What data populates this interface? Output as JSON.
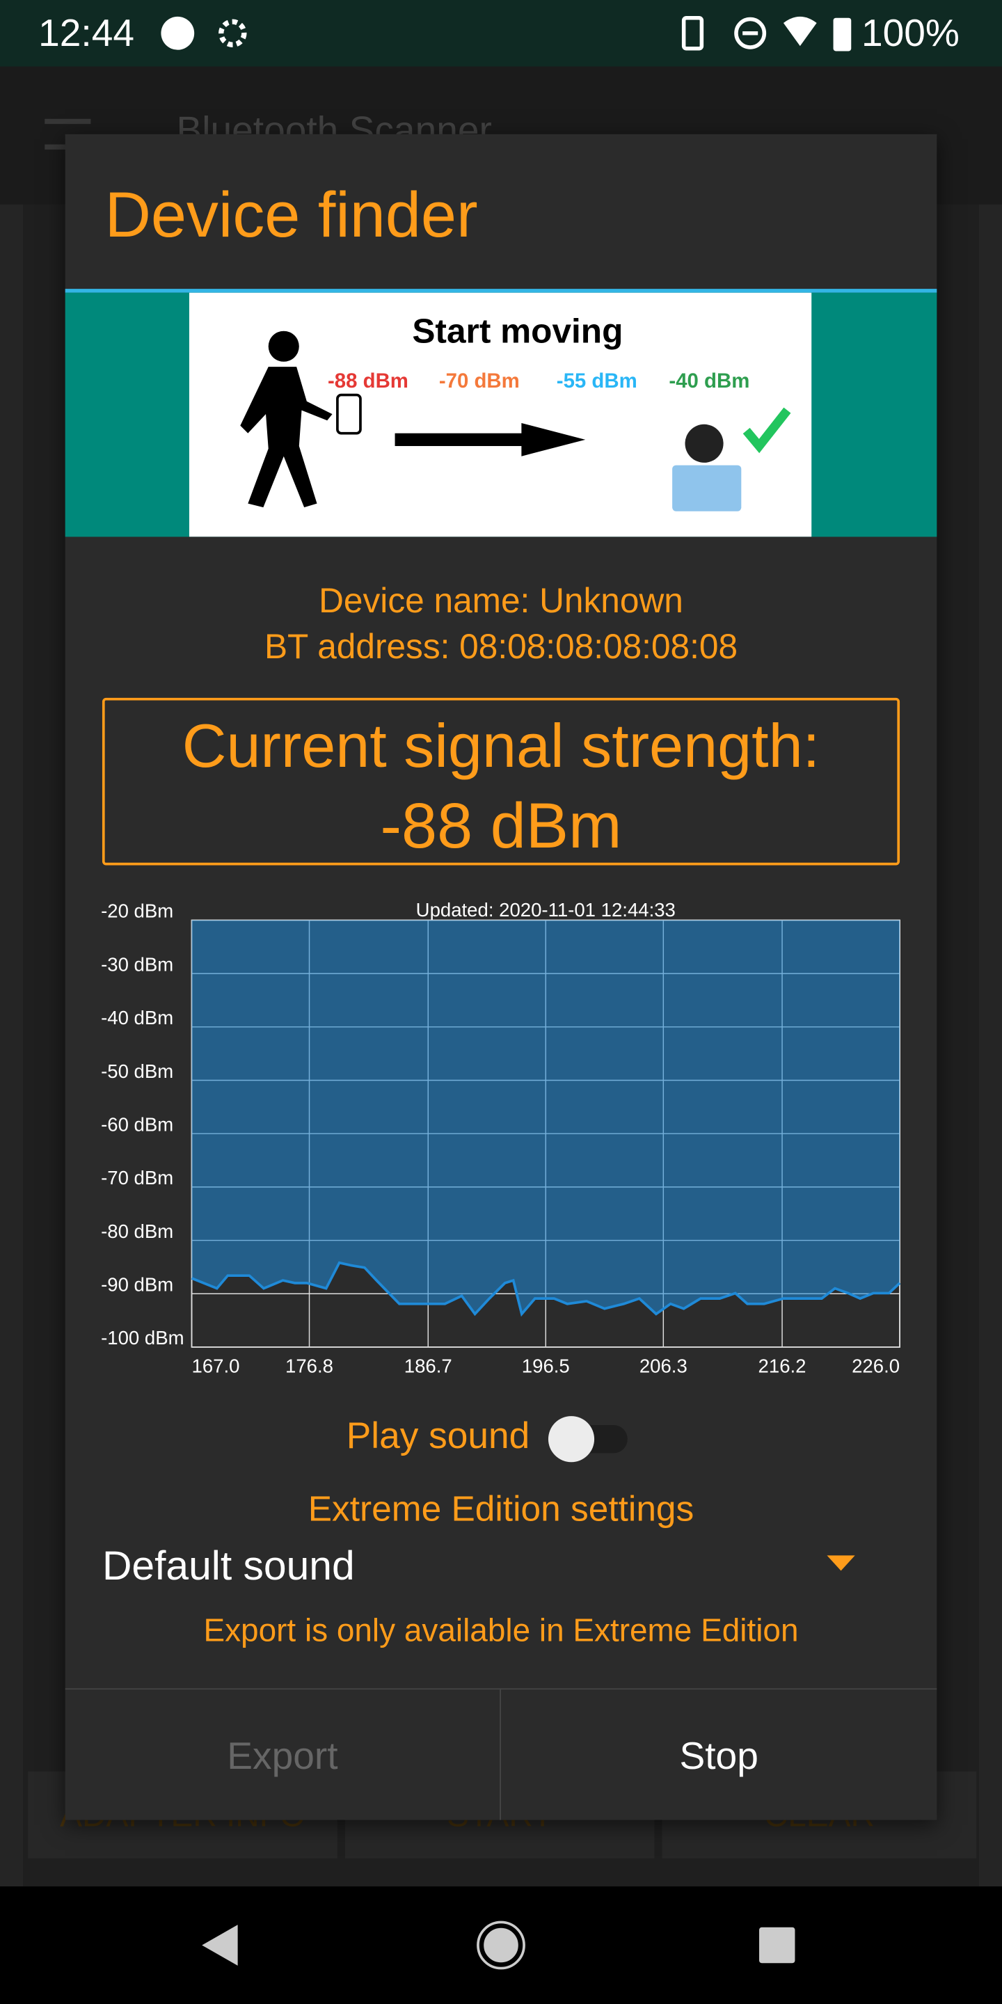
{
  "status_bar": {
    "time": "12:44",
    "battery": "100%"
  },
  "background_app": {
    "title": "Bluetooth Scanner",
    "buttons": [
      "ADAPTER INFO",
      "START",
      "CLEAR"
    ]
  },
  "dialog": {
    "title": "Device finder",
    "illustration": {
      "title": "Start moving",
      "levels": [
        "-88 dBm",
        "-70 dBm",
        "-55 dBm",
        "-40 dBm"
      ]
    },
    "device_name": "Device name: Unknown",
    "bt_address": "BT address: 08:08:08:08:08:08",
    "signal_label": "Current signal strength:",
    "signal_value": "-88 dBm",
    "play_sound": "Play sound",
    "extreme_settings": "Extreme Edition settings",
    "sound_option": "Default sound",
    "export_note": "Export is only available in Extreme Edition",
    "buttons": [
      "Export",
      "Stop"
    ]
  },
  "chart_data": {
    "type": "area",
    "annotation": "Updated: 2020-11-01 12:44:33",
    "x": [
      167,
      169.1,
      170,
      171.8,
      173,
      174.6,
      175.6,
      176.6,
      178.2,
      179.3,
      180.3,
      181.4,
      182.4,
      184.3,
      186.5,
      188.1,
      189.5,
      190.6,
      191.8,
      193.1,
      193.8,
      194.5,
      195.6,
      197.2,
      198.3,
      199.9,
      201.4,
      203,
      204.3,
      205.7,
      206.9,
      208,
      209.4,
      211,
      212.3,
      213.3,
      214.7,
      216.3,
      217.9,
      219.5,
      220.6,
      221.7,
      222.7,
      223.8,
      225.1,
      226
    ],
    "series": [
      {
        "color": "#1f8ad8",
        "values": [
          -87.1,
          -89,
          -86.6,
          -86.6,
          -89,
          -87.5,
          -88,
          -88,
          -89,
          -84.2,
          -84.7,
          -85.1,
          -87.5,
          -91.9,
          -91.9,
          -91.9,
          -90.4,
          -93.8,
          -90.9,
          -88,
          -87.5,
          -93.8,
          -90.9,
          -90.9,
          -91.9,
          -91.4,
          -92.8,
          -91.9,
          -90.9,
          -93.8,
          -91.9,
          -92.8,
          -90.9,
          -90.9,
          -89.9,
          -91.9,
          -91.9,
          -90.9,
          -90.9,
          -90.9,
          -89,
          -89.9,
          -90.9,
          -89.9,
          -89.9,
          -88
        ]
      }
    ],
    "xlim": [
      167,
      226
    ],
    "ylim": [
      -100,
      -20
    ],
    "xticks": [
      {
        "value": 167,
        "label": "167.0"
      },
      {
        "value": 176.8,
        "label": "176.8"
      },
      {
        "value": 186.7,
        "label": "186.7"
      },
      {
        "value": 196.5,
        "label": "196.5"
      },
      {
        "value": 206.3,
        "label": "206.3"
      },
      {
        "value": 216.2,
        "label": "216.2"
      },
      {
        "value": 226,
        "label": "226.0"
      }
    ],
    "yticks": [
      {
        "value": -20,
        "label": "-20 dBm"
      },
      {
        "value": -30,
        "label": "-30 dBm"
      },
      {
        "value": -40,
        "label": "-40 dBm"
      },
      {
        "value": -50,
        "label": "-50 dBm"
      },
      {
        "value": -60,
        "label": "-60 dBm"
      },
      {
        "value": -70,
        "label": "-70 dBm"
      },
      {
        "value": -80,
        "label": "-80 dBm"
      },
      {
        "value": -90,
        "label": "-90 dBm"
      },
      {
        "value": -100,
        "label": "-100 dBm"
      }
    ],
    "grid": true
  }
}
